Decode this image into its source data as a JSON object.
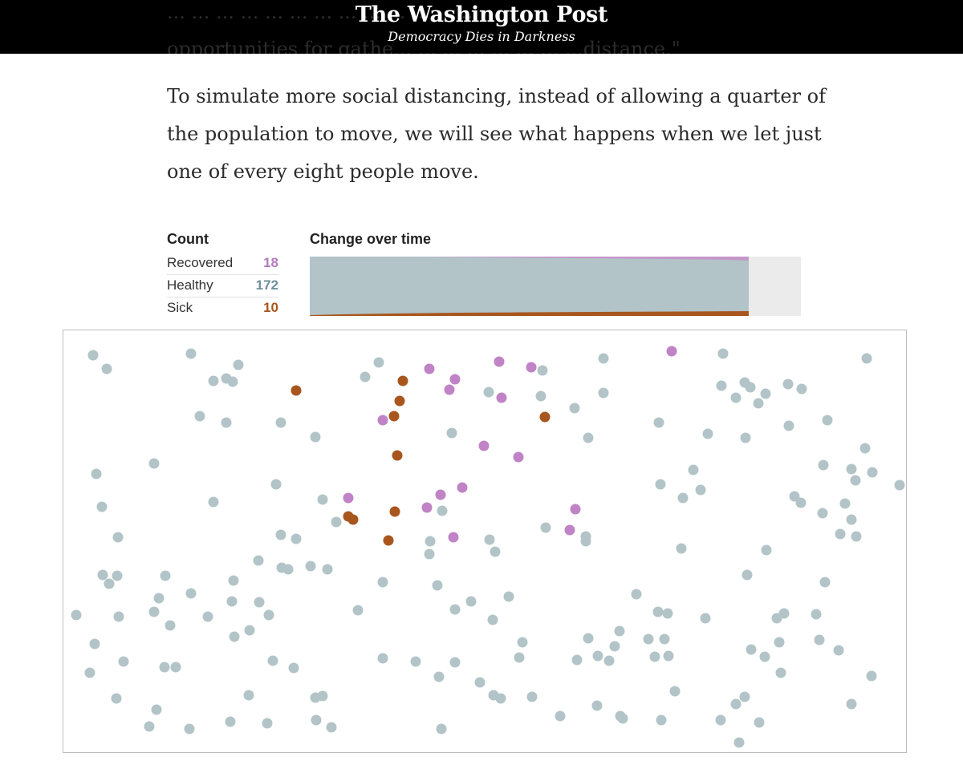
{
  "header": {
    "logo": "The Washington Post",
    "tagline": "Democracy Dies in Darkness",
    "underlay_lines": [
      "... ... ... ... ... ... ... ... ... ... ... ... ...",
      "opportunities for gathe... ... ... ... ... ... ... ...distance.\""
    ]
  },
  "paragraph": {
    "lines": [
      "To simulate more social distancing, instead of allowing a quarter of",
      "the population to move, we will see what happens when we let just",
      "one of every eight people move."
    ]
  },
  "count": {
    "title": "Count",
    "rows": [
      {
        "label": "Recovered",
        "value": "18",
        "color": "#b57abd"
      },
      {
        "label": "Healthy",
        "value": "172",
        "color": "#6f9099"
      },
      {
        "label": "Sick",
        "value": "10",
        "color": "#a8561e"
      }
    ]
  },
  "change": {
    "title": "Change over time",
    "progress": 0.893,
    "colors": {
      "healthy": "#b2c4c8",
      "recovered": "#c597c9",
      "sick": "#a8561e",
      "remaining": "#ebebeb"
    }
  },
  "simulation": {
    "colors": {
      "healthy": "#b2c4c8",
      "recovered": "#c083c6",
      "sick": "#a8561e"
    }
  }
}
